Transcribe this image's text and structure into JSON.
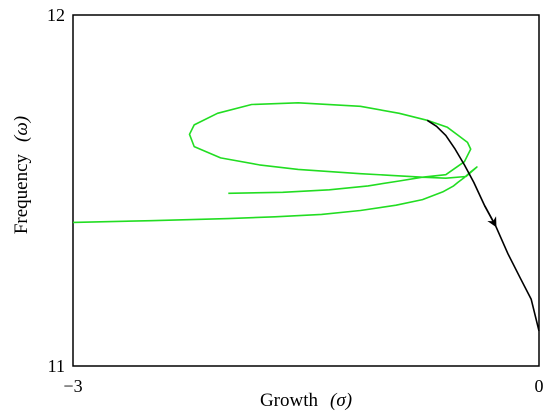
{
  "chart_data": {
    "type": "line",
    "xlabel": "Growth",
    "xlabel_symbol": "σ",
    "ylabel": "Frequency",
    "ylabel_symbol": "ω",
    "xlim": [
      -3,
      0
    ],
    "ylim": [
      11,
      12
    ],
    "xticks": [
      {
        "value": -3,
        "label": "−3"
      },
      {
        "value": 0,
        "label": "0"
      }
    ],
    "yticks": [
      {
        "value": 11,
        "label": "11"
      },
      {
        "value": 12,
        "label": "12"
      }
    ],
    "grid": false,
    "series": [
      {
        "color": "#22dd22",
        "x": [
          -3.0,
          -2.5,
          -2.0,
          -1.7,
          -1.4,
          -1.15,
          -0.92,
          -0.75,
          -0.62,
          -0.55,
          -0.52,
          -0.48,
          -0.44,
          -0.4,
          -0.47,
          -0.6,
          -0.75,
          -0.95,
          -1.15,
          -1.55,
          -1.8,
          -2.05,
          -2.22,
          -2.25,
          -2.22,
          -2.07,
          -1.85,
          -1.55,
          -1.15,
          -0.9,
          -0.72,
          -0.59,
          -0.52,
          -0.46,
          -0.44,
          -0.48,
          -0.6,
          -0.75,
          -0.9,
          -1.1,
          -1.35,
          -1.65,
          -2.0
        ],
        "y": [
          11.409,
          11.414,
          11.42,
          11.425,
          11.432,
          11.443,
          11.458,
          11.474,
          11.496,
          11.513,
          11.524,
          11.537,
          11.553,
          11.567,
          11.54,
          11.535,
          11.538,
          11.543,
          11.548,
          11.56,
          11.573,
          11.593,
          11.625,
          11.66,
          11.687,
          11.72,
          11.745,
          11.75,
          11.74,
          11.72,
          11.7,
          11.68,
          11.657,
          11.637,
          11.618,
          11.582,
          11.545,
          11.538,
          11.527,
          11.513,
          11.502,
          11.495,
          11.492
        ]
      },
      {
        "color": "#000000",
        "arrow": true,
        "x": [
          -0.72,
          -0.66,
          -0.6,
          -0.54,
          -0.48,
          -0.42,
          -0.35,
          -0.28,
          -0.2,
          -0.12,
          -0.05,
          0.0
        ],
        "y": [
          11.7,
          11.683,
          11.657,
          11.618,
          11.573,
          11.523,
          11.457,
          11.4,
          11.32,
          11.25,
          11.19,
          11.1
        ]
      }
    ]
  }
}
